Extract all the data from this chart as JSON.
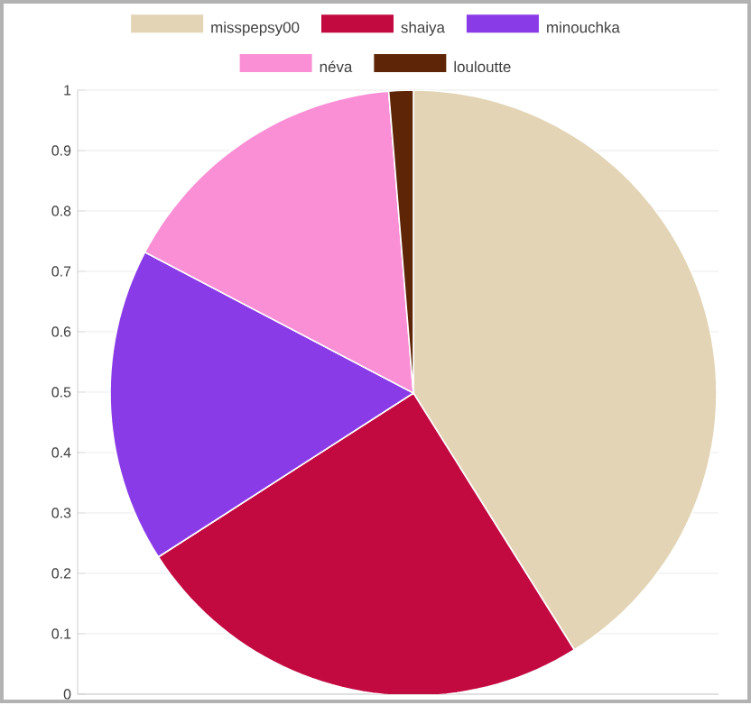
{
  "chart_data": {
    "type": "pie",
    "categories": [
      "misspepsy00",
      "shaiya",
      "minouchka",
      "néva",
      "louloutte"
    ],
    "values": [
      41.1,
      24.8,
      16.8,
      16.0,
      1.3
    ],
    "colors": [
      "#e3d4b5",
      "#c20a41",
      "#8a3be8",
      "#fb8fd6",
      "#5e2606"
    ],
    "annotations": [
      "0",
      "0.1",
      "0.2",
      "0.3",
      "0.4",
      "0.5",
      "0.6",
      "0.7",
      "0.8",
      "0.9",
      "1"
    ],
    "grid": "y",
    "legend": "top"
  }
}
